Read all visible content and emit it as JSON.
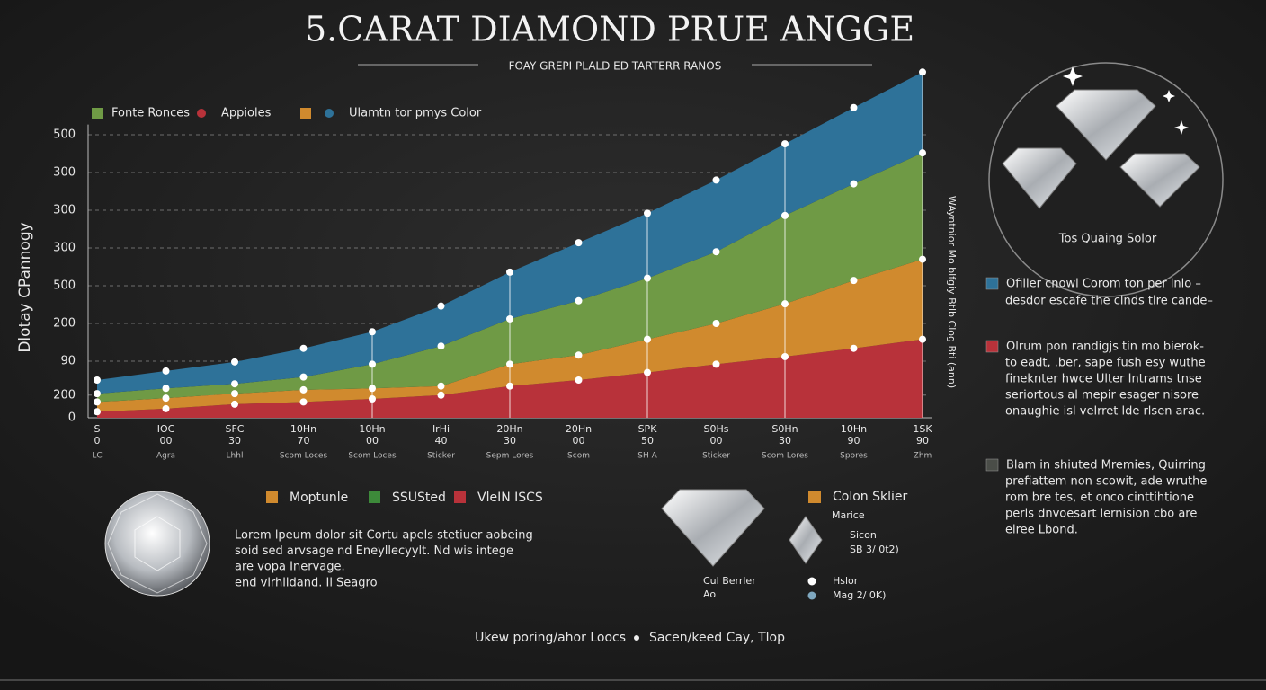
{
  "chart_data": {
    "type": "area",
    "stacked": true,
    "title": "5.CARAT DIAMOND PRUE ANGGE",
    "subtitle": "FOAY GREPI PLALD ED TARTERR RANOS",
    "y_label": "Dlotay CPannogy",
    "y2_label": "WAyntnior Mo blfgiy Btlb Clog Bti (ann)",
    "categories": [
      "S",
      "IOC",
      "SFC",
      "10Hn",
      "10Hn",
      "IrHi",
      "20Hn",
      "20Hn",
      "SPK",
      "S0Hs",
      "S0Hn",
      "10Hn",
      "1SK"
    ],
    "category_line_2": [
      "0",
      "00",
      "30",
      "70",
      "00",
      "40",
      "30",
      "00",
      "50",
      "00",
      "30",
      "90",
      "90"
    ],
    "category_line_3": [
      "LC",
      "Agra",
      "Lhhl",
      "Scom Loces",
      "Scom Loces",
      "Sticker",
      "Sepm Lores",
      "Scom",
      "SH A",
      "Sticker",
      "Scom Lores",
      "Spores",
      "Zhm"
    ],
    "series": [
      {
        "name": "Appioles",
        "color": "#b8323a",
        "legend_marker": "dot",
        "values": [
          8,
          12,
          18,
          21,
          25,
          30,
          42,
          50,
          60,
          71,
          81,
          92,
          104
        ]
      },
      {
        "color": "#d08a2e",
        "legend_marker": "square",
        "values": [
          13,
          14,
          14,
          16,
          14,
          12,
          29,
          33,
          44,
          54,
          70,
          90,
          106
        ]
      },
      {
        "name": "Fonte Ronces",
        "color": "#6f9a45",
        "legend_marker": "square",
        "values": [
          11,
          13,
          13,
          17,
          32,
          53,
          60,
          72,
          81,
          95,
          117,
          128,
          141
        ]
      },
      {
        "name": "Ulamtn tor pmys Color",
        "color": "#2e7299",
        "legend_marker": "dot",
        "values": [
          18,
          23,
          29,
          38,
          43,
          53,
          62,
          77,
          86,
          95,
          95,
          101,
          107
        ]
      }
    ],
    "ylim": [
      0,
      460
    ],
    "yticks": [
      0,
      {
        "value": 30,
        "label": "200"
      },
      {
        "value": 75,
        "label": "90"
      },
      {
        "value": 125,
        "label": "200"
      },
      {
        "value": 175,
        "label": "500"
      },
      {
        "value": 225,
        "label": "300"
      },
      {
        "value": 275,
        "label": "300"
      },
      {
        "value": 325,
        "label": "300"
      },
      {
        "value": 375,
        "label": "500"
      }
    ],
    "grid": true,
    "legend": "top-left"
  },
  "side_panel": {
    "caption": "Tos Quaing Solor",
    "notes": [
      {
        "color": "#2e7299",
        "lines": [
          "Ofiller cnowl Corom ton per lnlo –",
          "desdor escafe the clnds tlre cande–"
        ]
      },
      {
        "color": "#b8323a",
        "lines": [
          "Olrum pon randigjs tin mo bierok-",
          "to eadt, .ber, sape fush esy wuthe",
          "fineknter hwce Ulter Intrams tnse",
          "seriortous al mepir esager nisore",
          "onaughie isl velrret lde rlsen arac."
        ]
      },
      {
        "color": "#4a4d48",
        "lines": [
          "Blam in shiuted Mremies, Quirring",
          "prefiattem non scowit, ade wruthe",
          "rom bre tes, et onco cinttihtione",
          "perls dnvoesart lernision cbo are",
          "elree Lbond."
        ]
      }
    ]
  },
  "bottom": {
    "legend": [
      {
        "name": "Moptunle",
        "color": "#d08a2e"
      },
      {
        "name": "SSUSted",
        "color": "#3d8a3a"
      },
      {
        "name": "VleIN ISCS",
        "color": "#b8323a"
      }
    ],
    "text": [
      "Lorem lpeum dolor sit Cortu apels stetiuer aobeing",
      "soid sed arvsage nd Eneyllecyylt. Nd wis intege",
      "are vopa Inervage.",
      "end virhlldand. Il Seagro"
    ],
    "panel": {
      "title": "Colon Sklier",
      "color": "#d08a2e",
      "sub": "Marice",
      "detail": [
        "Sicon",
        "SB 3/ 0t2)"
      ],
      "cut": [
        "Cul Berrler",
        "Ao"
      ],
      "keys": [
        {
          "name": "Hslor",
          "color": "#ffffff"
        },
        {
          "name": "Mag 2/ 0K)",
          "color": "#7fa8c0"
        }
      ]
    }
  },
  "footer": [
    "Ukew poring/ahor Loocs",
    "Sacen/keed Cay, Tlop"
  ]
}
